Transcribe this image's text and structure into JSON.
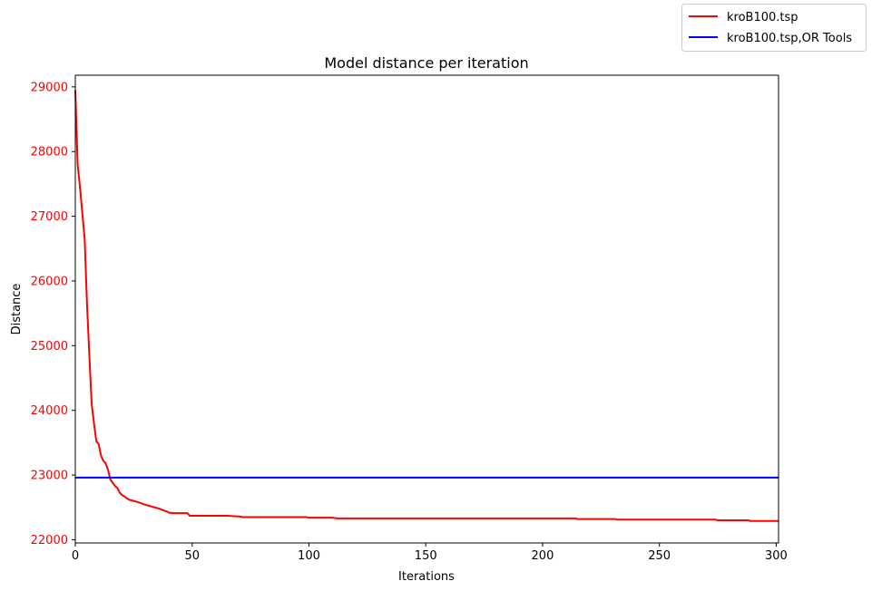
{
  "chart_data": {
    "type": "line",
    "title": "Model distance per iteration",
    "xlabel": "Iterations",
    "ylabel": "Distance",
    "xlim": [
      0,
      301
    ],
    "ylim": [
      21950,
      29180
    ],
    "x_ticks": [
      0,
      50,
      100,
      150,
      200,
      250,
      300
    ],
    "y_ticks": [
      22000,
      23000,
      24000,
      25000,
      26000,
      27000,
      28000,
      29000
    ],
    "y_tick_color": "#ff0000",
    "grid": false,
    "legend_position": "top-right (outside axes)",
    "series": [
      {
        "name": "kroB100.tsp",
        "color": "#ff0000",
        "x": [
          0,
          1,
          2,
          3,
          4,
          5,
          6,
          7,
          8,
          9,
          10,
          11,
          12,
          13,
          14,
          15,
          16,
          17,
          18,
          19,
          20,
          21,
          22,
          23,
          25,
          27,
          30,
          32,
          34,
          36,
          38,
          39,
          40,
          42,
          45,
          48,
          49,
          55,
          60,
          65,
          70,
          72,
          80,
          90,
          99,
          100,
          110,
          112,
          150,
          200,
          214,
          215,
          231,
          232,
          250,
          274,
          275,
          288,
          289,
          300,
          301
        ],
        "y": [
          28950,
          27800,
          27450,
          27050,
          26650,
          25650,
          24850,
          24100,
          23800,
          23520,
          23480,
          23300,
          23220,
          23180,
          23080,
          22930,
          22880,
          22830,
          22800,
          22730,
          22690,
          22670,
          22640,
          22620,
          22600,
          22580,
          22540,
          22520,
          22500,
          22480,
          22450,
          22440,
          22420,
          22410,
          22410,
          22410,
          22370,
          22370,
          22370,
          22370,
          22360,
          22350,
          22350,
          22350,
          22350,
          22340,
          22340,
          22330,
          22330,
          22330,
          22330,
          22320,
          22320,
          22310,
          22310,
          22310,
          22300,
          22300,
          22290,
          22290,
          22290
        ]
      },
      {
        "name": "kroB100.tsp,OR Tools",
        "color": "#0000ff",
        "x": [
          0,
          301
        ],
        "y": [
          22960,
          22960
        ]
      }
    ]
  }
}
